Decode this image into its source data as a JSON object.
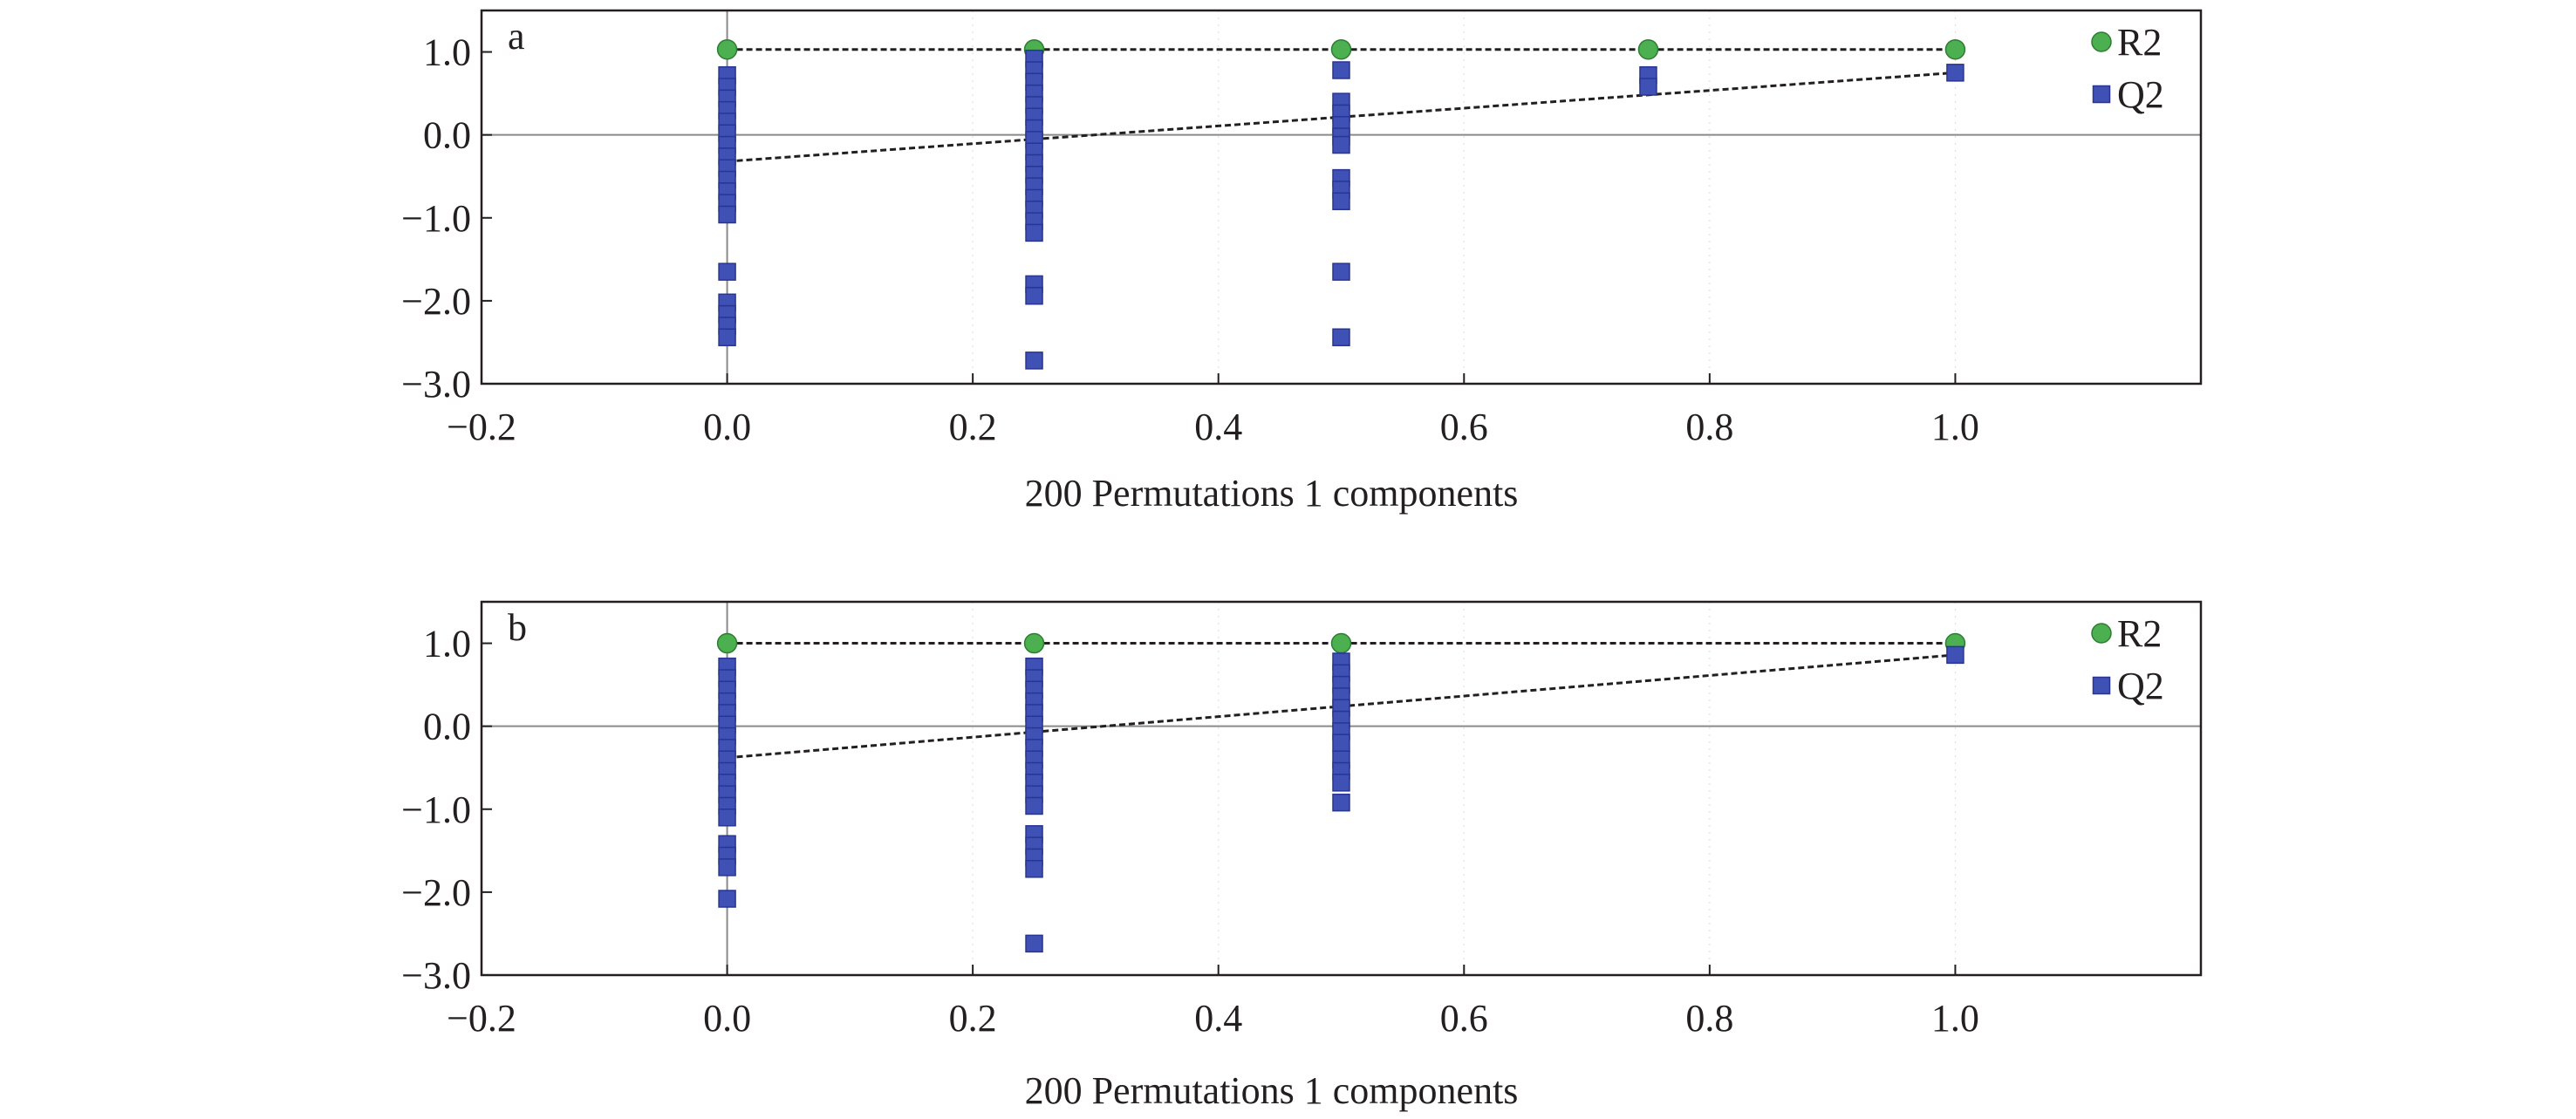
{
  "chart_data": [
    {
      "type": "scatter",
      "panel_label": "a",
      "xlabel": "200 Permutations 1 components",
      "ylabel": "",
      "xlim": [
        -0.2,
        1.2
      ],
      "ylim": [
        -3.0,
        1.5
      ],
      "xticks": [
        -0.2,
        0.0,
        0.2,
        0.4,
        0.6,
        0.8,
        1.0
      ],
      "xtick_labels": [
        "−0.2",
        "0.0",
        "0.2",
        "0.4",
        "0.6",
        "0.8",
        "1.0"
      ],
      "yticks": [
        -3.0,
        -2.0,
        -1.0,
        0.0,
        1.0
      ],
      "ytick_labels": [
        "−3.0",
        "−2.0",
        "−1.0",
        "0.0",
        "1.0"
      ],
      "legend": {
        "position": "top-right",
        "entries": [
          "R2",
          "Q2"
        ]
      },
      "grid": "faint dotted vertical",
      "colors": {
        "R2": "#4caf50",
        "Q2": "#3f51b5"
      },
      "series": [
        {
          "name": "R2",
          "marker": "circle",
          "points": [
            [
              0.0,
              1.03
            ],
            [
              0.25,
              1.03
            ],
            [
              0.5,
              1.03
            ],
            [
              0.75,
              1.03
            ],
            [
              1.0,
              1.03
            ]
          ]
        },
        {
          "name": "Q2",
          "marker": "square",
          "points": [
            [
              0.0,
              0.72
            ],
            [
              0.0,
              0.58
            ],
            [
              0.0,
              0.44
            ],
            [
              0.0,
              0.3
            ],
            [
              0.0,
              0.16
            ],
            [
              0.0,
              0.02
            ],
            [
              0.0,
              -0.12
            ],
            [
              0.0,
              -0.26
            ],
            [
              0.0,
              -0.4
            ],
            [
              0.0,
              -0.54
            ],
            [
              0.0,
              -0.68
            ],
            [
              0.0,
              -0.82
            ],
            [
              0.0,
              -0.96
            ],
            [
              0.0,
              -1.65
            ],
            [
              0.0,
              -2.02
            ],
            [
              0.0,
              -2.16
            ],
            [
              0.0,
              -2.3
            ],
            [
              0.0,
              -2.44
            ],
            [
              0.25,
              0.92
            ],
            [
              0.25,
              0.78
            ],
            [
              0.25,
              0.64
            ],
            [
              0.25,
              0.5
            ],
            [
              0.25,
              0.36
            ],
            [
              0.25,
              0.22
            ],
            [
              0.25,
              0.08
            ],
            [
              0.25,
              -0.06
            ],
            [
              0.25,
              -0.2
            ],
            [
              0.25,
              -0.34
            ],
            [
              0.25,
              -0.48
            ],
            [
              0.25,
              -0.62
            ],
            [
              0.25,
              -0.76
            ],
            [
              0.25,
              -0.9
            ],
            [
              0.25,
              -1.04
            ],
            [
              0.25,
              -1.18
            ],
            [
              0.25,
              -1.8
            ],
            [
              0.25,
              -1.94
            ],
            [
              0.25,
              -2.72
            ],
            [
              0.5,
              0.78
            ],
            [
              0.5,
              0.4
            ],
            [
              0.5,
              0.26
            ],
            [
              0.5,
              0.12
            ],
            [
              0.5,
              -0.02
            ],
            [
              0.5,
              -0.12
            ],
            [
              0.5,
              -0.52
            ],
            [
              0.5,
              -0.66
            ],
            [
              0.5,
              -0.8
            ],
            [
              0.5,
              -1.65
            ],
            [
              0.5,
              -2.44
            ],
            [
              0.75,
              0.72
            ],
            [
              0.75,
              0.58
            ],
            [
              1.0,
              0.75
            ]
          ]
        }
      ],
      "reference_lines": [
        {
          "series": "R2",
          "from": [
            0.0,
            1.03
          ],
          "to": [
            1.0,
            1.03
          ]
        },
        {
          "series": "Q2",
          "from": [
            0.0,
            -0.32
          ],
          "to": [
            1.0,
            0.75
          ]
        }
      ]
    },
    {
      "type": "scatter",
      "panel_label": "b",
      "xlabel": "200 Permutations 1 components",
      "ylabel": "",
      "xlim": [
        -0.2,
        1.2
      ],
      "ylim": [
        -3.0,
        1.5
      ],
      "xticks": [
        -0.2,
        0.0,
        0.2,
        0.4,
        0.6,
        0.8,
        1.0
      ],
      "xtick_labels": [
        "−0.2",
        "0.0",
        "0.2",
        "0.4",
        "0.6",
        "0.8",
        "1.0"
      ],
      "yticks": [
        -3.0,
        -2.0,
        -1.0,
        0.0,
        1.0
      ],
      "ytick_labels": [
        "−3.0",
        "−2.0",
        "−1.0",
        "0.0",
        "1.0"
      ],
      "legend": {
        "position": "top-right",
        "entries": [
          "R2",
          "Q2"
        ]
      },
      "grid": "faint dotted vertical",
      "colors": {
        "R2": "#4caf50",
        "Q2": "#3f51b5"
      },
      "series": [
        {
          "name": "R2",
          "marker": "circle",
          "points": [
            [
              0.0,
              1.0
            ],
            [
              0.25,
              1.0
            ],
            [
              0.5,
              1.0
            ],
            [
              1.0,
              1.0
            ]
          ]
        },
        {
          "name": "Q2",
          "marker": "square",
          "points": [
            [
              0.0,
              0.72
            ],
            [
              0.0,
              0.58
            ],
            [
              0.0,
              0.44
            ],
            [
              0.0,
              0.3
            ],
            [
              0.0,
              0.16
            ],
            [
              0.0,
              0.02
            ],
            [
              0.0,
              -0.12
            ],
            [
              0.0,
              -0.26
            ],
            [
              0.0,
              -0.4
            ],
            [
              0.0,
              -0.54
            ],
            [
              0.0,
              -0.68
            ],
            [
              0.0,
              -0.82
            ],
            [
              0.0,
              -0.96
            ],
            [
              0.0,
              -1.1
            ],
            [
              0.0,
              -1.42
            ],
            [
              0.0,
              -1.56
            ],
            [
              0.0,
              -1.7
            ],
            [
              0.0,
              -2.08
            ],
            [
              0.25,
              0.72
            ],
            [
              0.25,
              0.58
            ],
            [
              0.25,
              0.44
            ],
            [
              0.25,
              0.3
            ],
            [
              0.25,
              0.16
            ],
            [
              0.25,
              0.02
            ],
            [
              0.25,
              -0.12
            ],
            [
              0.25,
              -0.26
            ],
            [
              0.25,
              -0.4
            ],
            [
              0.25,
              -0.54
            ],
            [
              0.25,
              -0.68
            ],
            [
              0.25,
              -0.82
            ],
            [
              0.25,
              -0.96
            ],
            [
              0.25,
              -1.3
            ],
            [
              0.25,
              -1.44
            ],
            [
              0.25,
              -1.58
            ],
            [
              0.25,
              -1.72
            ],
            [
              0.25,
              -2.62
            ],
            [
              0.5,
              0.78
            ],
            [
              0.5,
              0.64
            ],
            [
              0.5,
              0.5
            ],
            [
              0.5,
              0.36
            ],
            [
              0.5,
              0.22
            ],
            [
              0.5,
              0.08
            ],
            [
              0.5,
              -0.06
            ],
            [
              0.5,
              -0.2
            ],
            [
              0.5,
              -0.4
            ],
            [
              0.5,
              -0.54
            ],
            [
              0.5,
              -0.68
            ],
            [
              0.5,
              -0.92
            ],
            [
              1.0,
              0.86
            ]
          ]
        }
      ],
      "reference_lines": [
        {
          "series": "R2",
          "from": [
            0.0,
            1.0
          ],
          "to": [
            1.0,
            1.0
          ]
        },
        {
          "series": "Q2",
          "from": [
            0.0,
            -0.38
          ],
          "to": [
            1.0,
            0.86
          ]
        }
      ]
    }
  ]
}
